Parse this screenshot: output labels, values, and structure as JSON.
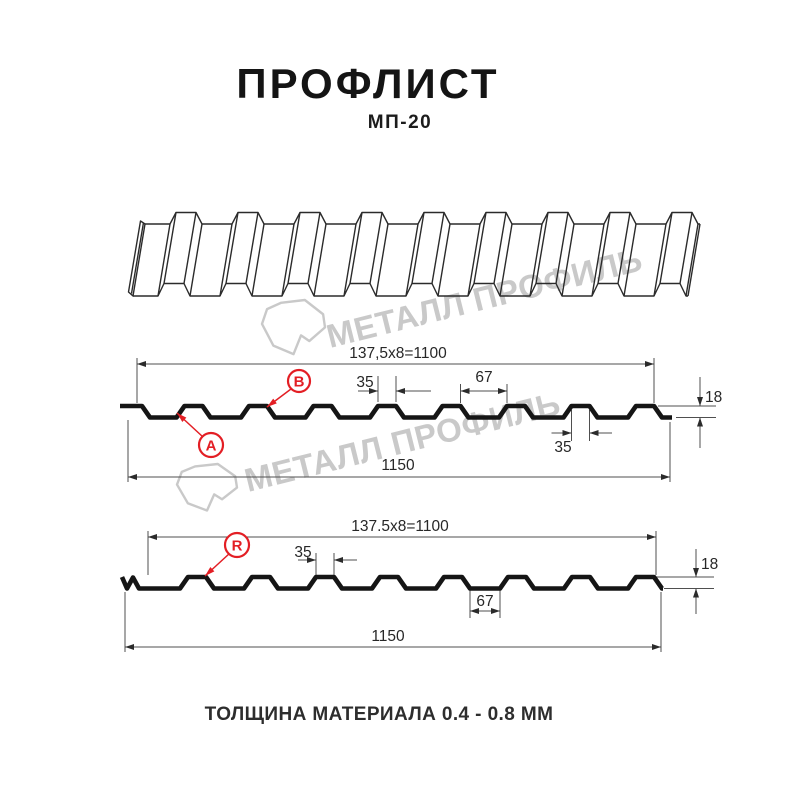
{
  "header": {
    "title": "ПРОФЛИСТ",
    "subtitle": "МП-20"
  },
  "watermark": {
    "text": "МЕТАЛЛ ПРОФИЛЬ"
  },
  "top_profile": {
    "span": "137,5x8=1100",
    "crest_width": "35",
    "valley_width": "67",
    "height": "18",
    "crest_width_bottom": "35",
    "total_width": "1150",
    "label_a": "A",
    "label_b": "B"
  },
  "bottom_profile": {
    "span": "137.5x8=1100",
    "crest_width": "35",
    "valley_width": "67",
    "height": "18",
    "total_width": "1150",
    "label_r": "R"
  },
  "footer": {
    "caption": "ТОЛЩИНА МАТЕРИАЛА 0.4 - 0.8 ММ"
  },
  "colors": {
    "accent_red": "#e31e24",
    "diagram_black": "#151515",
    "dim_line": "#4f4f4f",
    "watermark_gray": "#c9c9c9"
  }
}
